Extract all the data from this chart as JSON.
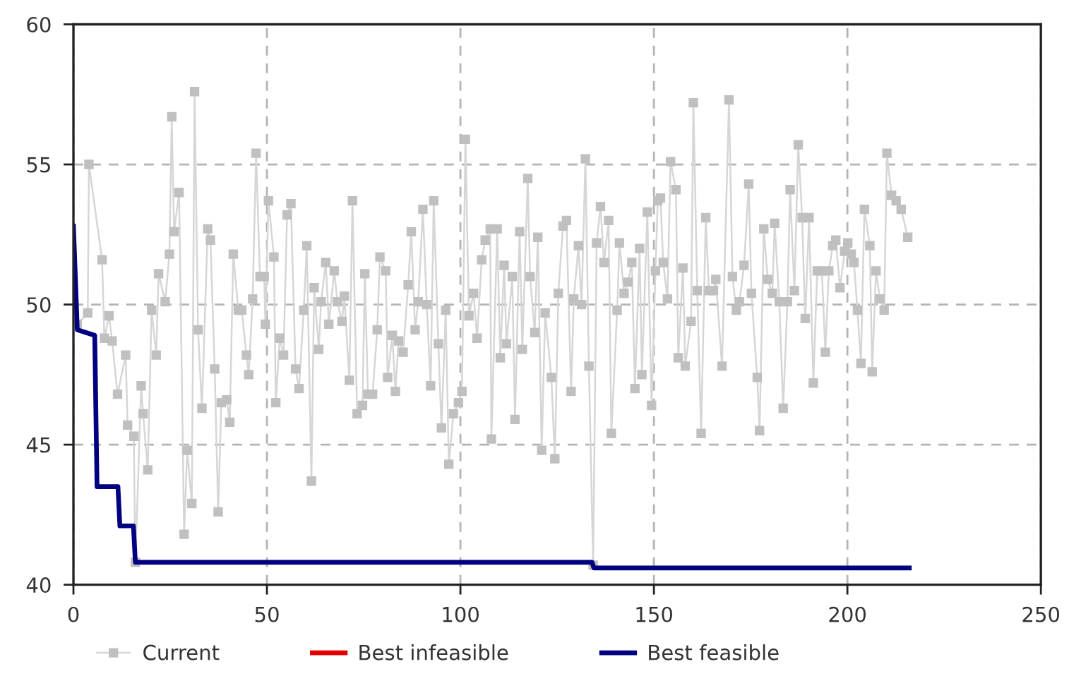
{
  "chart_data": {
    "type": "line",
    "xlim": [
      0,
      250
    ],
    "xticks": [
      0,
      50,
      100,
      150,
      200,
      250
    ],
    "ylim": [
      40,
      60
    ],
    "yticks": [
      40,
      45,
      50,
      55,
      60
    ],
    "grid": true,
    "legend": "bottom",
    "series": [
      {
        "name": "Current",
        "color": "#c0c0c0",
        "marker": "square",
        "x": [
          1,
          3.7,
          4,
          7.4,
          8,
          9.2,
          10,
          11.4,
          13.5,
          14,
          15.6,
          16,
          17.5,
          18,
          19.2,
          20.2,
          21.4,
          22,
          23.7,
          24.8,
          25.4,
          26,
          27.3,
          28.6,
          29.4,
          30.6,
          31.3,
          32.2,
          33.2,
          34.7,
          35.4,
          36.5,
          37.4,
          38.2,
          39.6,
          40.4,
          41.3,
          42.6,
          43.5,
          44.7,
          45.3,
          46.3,
          47.2,
          48.2,
          49.3,
          49.6,
          50.4,
          51.8,
          52.3,
          53.3,
          54.3,
          55.2,
          56.2,
          57.4,
          58.3,
          59.5,
          60.3,
          61.5,
          62.2,
          63.4,
          64,
          65.2,
          66,
          67.4,
          68.2,
          69.4,
          70,
          71.3,
          72.1,
          73.3,
          74.7,
          75.3,
          76.1,
          77.3,
          78.5,
          79.2,
          80.7,
          81.2,
          82.4,
          83.2,
          84,
          85.2,
          86.5,
          87.3,
          88.3,
          89.1,
          90.3,
          91.3,
          92.3,
          93.1,
          94.3,
          95.1,
          96.2,
          97,
          98.2,
          99.5,
          100.4,
          101.3,
          102.2,
          103.4,
          104.3,
          105.5,
          106.4,
          107.7,
          108,
          109.5,
          110.3,
          111.3,
          111.9,
          113.4,
          114.1,
          115.3,
          116,
          117.4,
          118,
          119.2,
          120,
          121,
          121.9,
          123.5,
          124.4,
          125.3,
          126.5,
          127.4,
          128.6,
          129.3,
          130.5,
          131.3,
          132.3,
          133.2,
          134.3,
          135.2,
          136.2,
          137.1,
          138.3,
          139,
          140.5,
          141.1,
          142.3,
          143.3,
          144.3,
          145.1,
          146.3,
          146.9,
          148.3,
          149.4,
          150.4,
          151,
          151.7,
          152.4,
          153.5,
          154.3,
          155.7,
          156.3,
          157.5,
          158.1,
          159.6,
          160.2,
          161.2,
          162.2,
          163.4,
          164.2,
          165.4,
          166,
          167.6,
          169.4,
          170.3,
          171.3,
          172.1,
          173.3,
          174.5,
          175.2,
          176.7,
          177.3,
          178.4,
          179.4,
          180.6,
          181.2,
          182.4,
          183.4,
          184.5,
          185.2,
          186.3,
          187.3,
          188.3,
          189.1,
          190.1,
          191.2,
          192.2,
          193.4,
          194.3,
          195.2,
          196.2,
          197,
          198.1,
          199.3,
          200.1,
          201,
          201.7,
          202.6,
          203.5,
          204.4,
          205.8,
          206.4,
          207.4,
          208.4,
          209.5,
          210.2,
          211.4,
          212.6,
          213.9,
          215.6
        ],
        "values": [
          49.3,
          49.7,
          55.0,
          51.6,
          48.8,
          49.6,
          48.7,
          46.8,
          48.2,
          45.7,
          45.3,
          40.8,
          47.1,
          46.1,
          44.1,
          49.8,
          48.2,
          51.1,
          50.1,
          51.8,
          56.7,
          52.6,
          54.0,
          41.8,
          44.8,
          42.9,
          57.6,
          49.1,
          46.3,
          52.7,
          52.3,
          47.7,
          42.6,
          46.5,
          46.6,
          45.8,
          51.8,
          49.8,
          49.8,
          48.2,
          47.5,
          50.2,
          55.4,
          51.0,
          51.0,
          49.3,
          53.7,
          51.7,
          46.5,
          48.8,
          48.2,
          53.2,
          53.6,
          47.7,
          47.0,
          49.8,
          52.1,
          43.7,
          50.6,
          48.4,
          50.1,
          51.5,
          49.3,
          51.2,
          50.1,
          49.4,
          50.3,
          47.3,
          53.7,
          46.1,
          46.4,
          51.1,
          46.8,
          46.8,
          49.1,
          51.7,
          51.2,
          47.4,
          48.9,
          46.9,
          48.7,
          48.3,
          50.7,
          52.6,
          49.1,
          50.1,
          53.4,
          50.0,
          47.1,
          53.7,
          48.6,
          45.6,
          49.8,
          44.3,
          46.1,
          46.5,
          46.9,
          55.9,
          49.6,
          50.4,
          48.8,
          51.6,
          52.3,
          52.7,
          45.2,
          52.7,
          48.1,
          51.4,
          48.6,
          51.0,
          45.9,
          52.6,
          48.4,
          54.5,
          51.0,
          49.0,
          52.4,
          44.8,
          49.7,
          47.4,
          44.5,
          50.4,
          52.8,
          53.0,
          46.9,
          50.2,
          52.1,
          50.0,
          55.2,
          47.8,
          40.7,
          52.2,
          53.5,
          51.5,
          53.0,
          45.4,
          49.8,
          52.2,
          50.4,
          50.8,
          51.5,
          47.0,
          52.0,
          47.5,
          53.3,
          46.4,
          51.2,
          53.7,
          53.8,
          51.5,
          50.2,
          55.1,
          54.1,
          48.1,
          51.3,
          47.8,
          49.4,
          57.2,
          50.5,
          45.4,
          53.1,
          50.5,
          50.5,
          50.9,
          47.8,
          57.3,
          51.0,
          49.8,
          50.1,
          51.4,
          54.3,
          50.4,
          47.4,
          45.5,
          52.7,
          50.9,
          50.4,
          52.9,
          50.1,
          46.3,
          50.1,
          54.1,
          50.5,
          55.7,
          53.1,
          49.5,
          53.1,
          47.2,
          51.2,
          51.2,
          48.3,
          51.2,
          52.1,
          52.3,
          50.6,
          51.9,
          52.2,
          51.8,
          51.5,
          49.8,
          47.9,
          53.4,
          52.1,
          47.6,
          51.2,
          50.2,
          49.8,
          55.4,
          53.9,
          53.7,
          53.4,
          52.4
        ]
      },
      {
        "name": "Best infeasible",
        "color": "#e00000"
      },
      {
        "name": "Best feasible",
        "color": "#000080",
        "x": [
          0,
          1,
          5.5,
          6.1,
          11.5,
          12,
          15.5,
          16,
          134,
          134.5,
          216
        ],
        "values": [
          52.8,
          49.1,
          48.9,
          43.5,
          43.5,
          42.1,
          42.1,
          40.8,
          40.8,
          40.6,
          40.6
        ]
      }
    ]
  }
}
